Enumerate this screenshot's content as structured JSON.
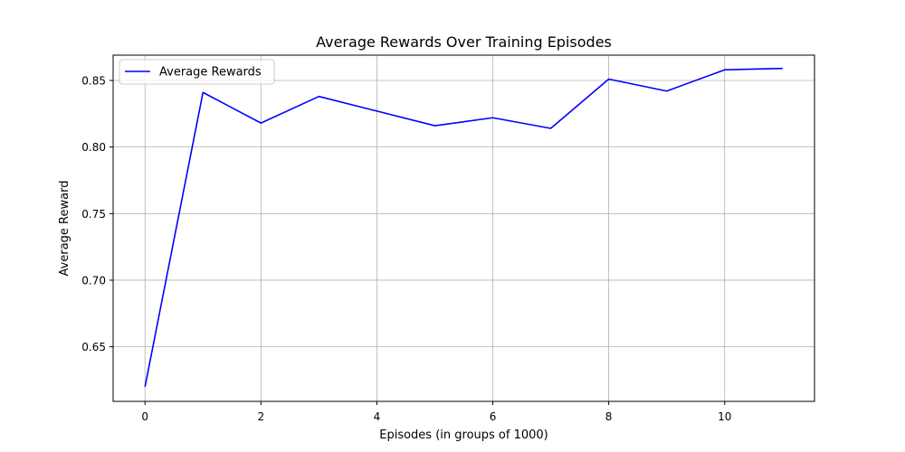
{
  "colors": {
    "series": "#0000ff",
    "grid": "#b0b0b0",
    "axes": "#000000",
    "legend_border": "#cccccc"
  },
  "chart_data": {
    "type": "line",
    "title": "Average Rewards Over Training Episodes",
    "xlabel": "Episodes (in groups of 1000)",
    "ylabel": "Average Reward",
    "xlim": [
      -0.55,
      11.55
    ],
    "ylim": [
      0.609,
      0.869
    ],
    "xticks": [
      0,
      2,
      4,
      6,
      8,
      10
    ],
    "xtick_labels": [
      "0",
      "2",
      "4",
      "6",
      "8",
      "10"
    ],
    "yticks": [
      0.65,
      0.7,
      0.75,
      0.8,
      0.85
    ],
    "ytick_labels": [
      "0.65",
      "0.70",
      "0.75",
      "0.80",
      "0.85"
    ],
    "grid": true,
    "legend_position": "top-left",
    "x": [
      0,
      1,
      2,
      3,
      4,
      5,
      6,
      7,
      8,
      9,
      10,
      11
    ],
    "series": [
      {
        "name": "Average Rewards",
        "color": "#0000ff",
        "values": [
          0.62,
          0.841,
          0.818,
          0.838,
          0.827,
          0.816,
          0.822,
          0.814,
          0.851,
          0.842,
          0.858,
          0.859
        ]
      }
    ]
  }
}
